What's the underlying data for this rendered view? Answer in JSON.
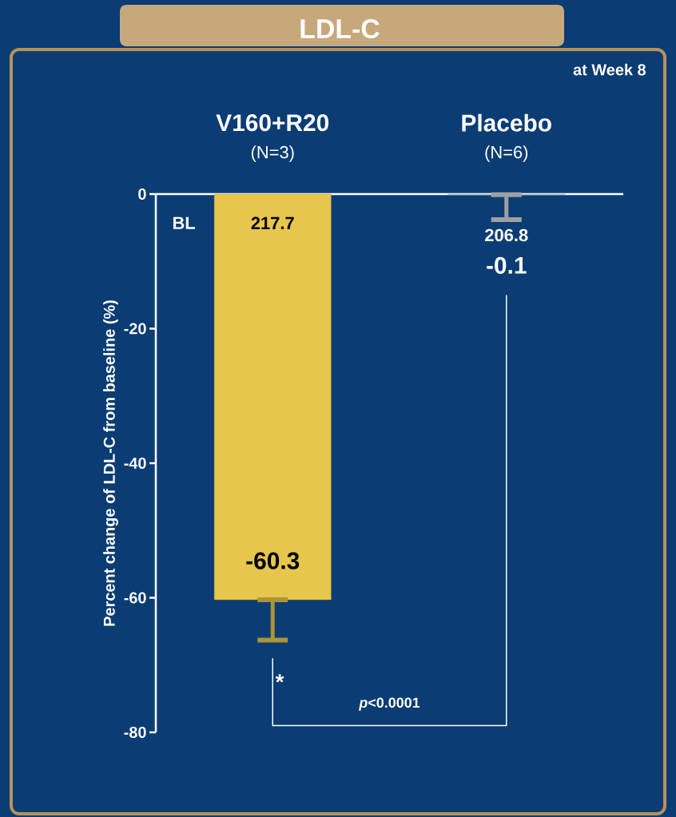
{
  "chart_data": {
    "type": "bar",
    "title": "LDL-C",
    "ylabel": "Percent change of LDL-C from baseline (%)",
    "categories": [
      "V160+R20",
      "Placebo"
    ],
    "values": [
      -60.3,
      -0.1
    ],
    "colors": [
      "#e6c64c",
      "#d4d4d4"
    ],
    "errors": [
      [
        -66.3,
        -60.3
      ],
      [
        -3.8,
        -0.1
      ]
    ],
    "value_labels": [
      "-60.3",
      "-0.1"
    ],
    "ylim": [
      -80,
      0
    ],
    "yticks": [
      0,
      -20,
      -40,
      -60,
      -80
    ],
    "annotations": [
      "at Week 8",
      "(N=3)",
      "(N=6)",
      "BL",
      "217.7",
      "206.8",
      "*",
      "*p*<0.0001"
    ]
  }
}
